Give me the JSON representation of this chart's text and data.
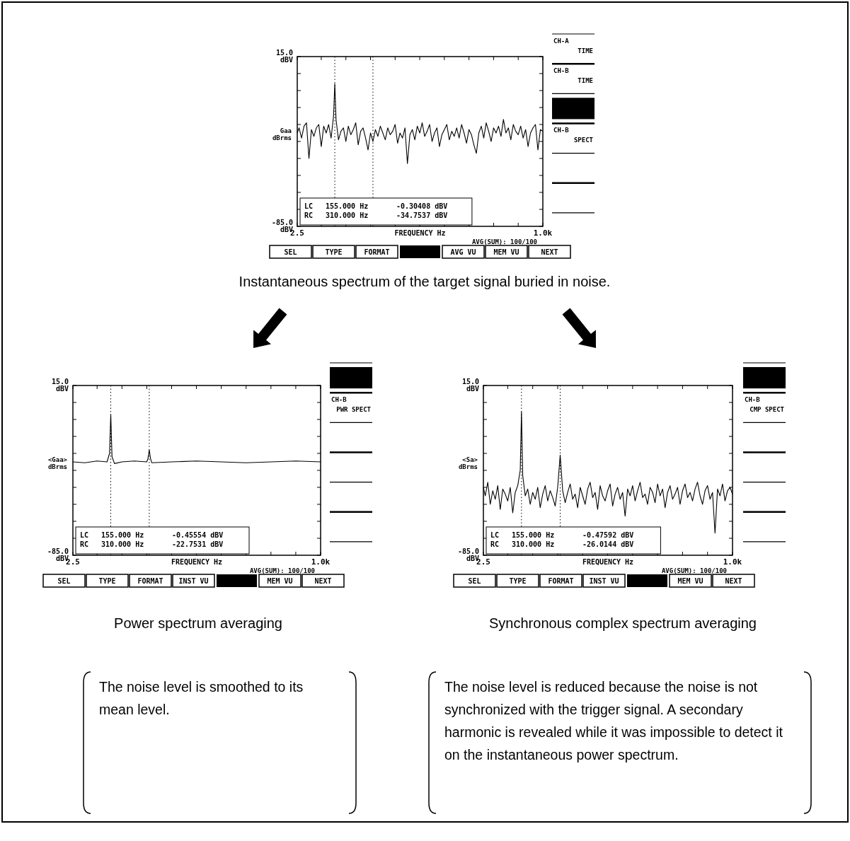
{
  "chart_data": [
    {
      "type": "line",
      "title": "Instantaneous spectrum of the target signal buried in noise.",
      "xlabel": "FREQUENCY Hz",
      "ylabel": "Gaa dBrms",
      "xlim": [
        2.5,
        1000
      ],
      "ylim": [
        -85,
        15
      ],
      "xticks": [
        {
          "value": 2.5,
          "label": "2.5"
        },
        {
          "value": 100,
          "label": null
        },
        {
          "value": 200,
          "label": null
        },
        {
          "value": 300,
          "label": null
        },
        {
          "value": 400,
          "label": null
        },
        {
          "value": 500,
          "label": null
        },
        {
          "value": 600,
          "label": null
        },
        {
          "value": 700,
          "label": null
        },
        {
          "value": 800,
          "label": null
        },
        {
          "value": 900,
          "label": null
        },
        {
          "value": 1000,
          "label": "1.0k"
        }
      ],
      "yticks": [
        {
          "value": 15,
          "label": "15.0 dBV"
        },
        {
          "value": 5,
          "label": null
        },
        {
          "value": -5,
          "label": null
        },
        {
          "value": -15,
          "label": null
        },
        {
          "value": -25,
          "label": null
        },
        {
          "value": -35,
          "label": null
        },
        {
          "value": -45,
          "label": null
        },
        {
          "value": -55,
          "label": null
        },
        {
          "value": -65,
          "label": null
        },
        {
          "value": -75,
          "label": null
        },
        {
          "value": -85,
          "label": "-85.0 dBV"
        }
      ],
      "x": [
        2.5,
        10,
        20,
        30,
        40,
        50,
        60,
        70,
        80,
        90,
        100,
        110,
        120,
        130,
        140,
        150,
        155,
        160,
        170,
        180,
        190,
        200,
        210,
        220,
        230,
        240,
        250,
        260,
        270,
        280,
        290,
        300,
        310,
        320,
        330,
        340,
        350,
        360,
        370,
        380,
        390,
        400,
        410,
        420,
        430,
        440,
        450,
        460,
        470,
        480,
        490,
        500,
        510,
        520,
        530,
        540,
        550,
        560,
        570,
        580,
        590,
        600,
        610,
        620,
        630,
        640,
        650,
        660,
        670,
        680,
        690,
        700,
        710,
        720,
        730,
        740,
        750,
        760,
        770,
        780,
        790,
        800,
        810,
        820,
        830,
        840,
        850,
        860,
        870,
        880,
        890,
        900,
        910,
        920,
        930,
        940,
        950,
        960,
        970,
        980,
        990,
        1000
      ],
      "series": [
        {
          "color": "#000000",
          "values": [
            -30,
            -27,
            -33,
            -26,
            -24,
            -45,
            -28,
            -32,
            -27,
            -25,
            -38,
            -26,
            -30,
            -25,
            -33,
            -20,
            -1,
            -22,
            -34,
            -29,
            -27,
            -35,
            -26,
            -31,
            -28,
            -24,
            -37,
            -29,
            -27,
            -33,
            -40,
            -30,
            -35,
            -28,
            -32,
            -26,
            -30,
            -34,
            -27,
            -31,
            -29,
            -25,
            -36,
            -30,
            -33,
            -27,
            -48,
            -31,
            -28,
            -34,
            -26,
            -30,
            -24,
            -32,
            -29,
            -25,
            -35,
            -30,
            -27,
            -38,
            -31,
            -28,
            -25,
            -34,
            -29,
            -32,
            -27,
            -33,
            -25,
            -30,
            -36,
            -28,
            -31,
            -37,
            -42,
            -30,
            -26,
            -33,
            -24,
            -29,
            -35,
            -27,
            -30,
            -26,
            -32,
            -22,
            -30,
            -27,
            -34,
            -25,
            -29,
            -31,
            -26,
            -33,
            -28,
            -38,
            -30,
            -27,
            -25,
            -40,
            -28,
            -29
          ]
        }
      ],
      "ref_lines": [
        {
          "axis": "x",
          "value": 155,
          "line_style": "dotted"
        },
        {
          "axis": "x",
          "value": 310,
          "line_style": "dotted"
        }
      ],
      "annotations": [
        "LC",
        "155.000 Hz",
        "-0.30408 dBV",
        "RC",
        "310.000 Hz",
        "-34.7537 dBV",
        "AVG(SUM): 100/100",
        "SEL",
        "TYPE",
        "FORMAT",
        "AVG VU",
        "MEM VU",
        "NEXT",
        "CH-A TIME",
        "CH-B TIME",
        "CH-B SPECT"
      ]
    },
    {
      "type": "line",
      "title": "Power spectrum averaging",
      "xlabel": "FREQUENCY Hz",
      "ylabel": "<Gaa> dBrms",
      "xlim": [
        2.5,
        1000
      ],
      "ylim": [
        -85,
        15
      ],
      "xticks": [
        {
          "value": 2.5,
          "label": "2.5"
        },
        {
          "value": 100,
          "label": null
        },
        {
          "value": 200,
          "label": null
        },
        {
          "value": 300,
          "label": null
        },
        {
          "value": 400,
          "label": null
        },
        {
          "value": 500,
          "label": null
        },
        {
          "value": 600,
          "label": null
        },
        {
          "value": 700,
          "label": null
        },
        {
          "value": 800,
          "label": null
        },
        {
          "value": 900,
          "label": null
        },
        {
          "value": 1000,
          "label": "1.0k"
        }
      ],
      "yticks": [
        {
          "value": 15,
          "label": "15.0 dBV"
        },
        {
          "value": 5,
          "label": null
        },
        {
          "value": -5,
          "label": null
        },
        {
          "value": -15,
          "label": null
        },
        {
          "value": -25,
          "label": null
        },
        {
          "value": -35,
          "label": null
        },
        {
          "value": -45,
          "label": null
        },
        {
          "value": -55,
          "label": null
        },
        {
          "value": -65,
          "label": null
        },
        {
          "value": -75,
          "label": null
        },
        {
          "value": -85,
          "label": "-85.0 dBV"
        }
      ],
      "x": [
        2.5,
        50,
        100,
        140,
        150,
        155,
        160,
        170,
        200,
        250,
        300,
        305,
        310,
        315,
        320,
        400,
        500,
        600,
        700,
        800,
        900,
        1000
      ],
      "series": [
        {
          "color": "#000000",
          "values": [
            -30,
            -30.5,
            -29.5,
            -30,
            -25,
            -2,
            -27,
            -31,
            -30,
            -29.5,
            -30,
            -28,
            -23,
            -28,
            -30.5,
            -30,
            -29.5,
            -30,
            -30.5,
            -30,
            -29.5,
            -30
          ]
        }
      ],
      "ref_lines": [
        {
          "axis": "x",
          "value": 155,
          "line_style": "dotted"
        },
        {
          "axis": "x",
          "value": 310,
          "line_style": "dotted"
        }
      ],
      "annotations": [
        "LC",
        "155.000 Hz",
        "-0.45554 dBV",
        "RC",
        "310.000 Hz",
        "-22.7531 dBV",
        "AVG(SUM): 100/100",
        "SEL",
        "TYPE",
        "FORMAT",
        "INST VU",
        "MEM VU",
        "NEXT",
        "CH-B PWR SPECT",
        "The noise level is smoothed to its mean level."
      ]
    },
    {
      "type": "line",
      "title": "Synchronous complex spectrum averaging",
      "xlabel": "FREQUENCY Hz",
      "ylabel": "<Sa> dBrms",
      "xlim": [
        2.5,
        1000
      ],
      "ylim": [
        -85,
        15
      ],
      "xticks": [
        {
          "value": 2.5,
          "label": "2.5"
        },
        {
          "value": 100,
          "label": null
        },
        {
          "value": 200,
          "label": null
        },
        {
          "value": 300,
          "label": null
        },
        {
          "value": 400,
          "label": null
        },
        {
          "value": 500,
          "label": null
        },
        {
          "value": 600,
          "label": null
        },
        {
          "value": 700,
          "label": null
        },
        {
          "value": 800,
          "label": null
        },
        {
          "value": 900,
          "label": null
        },
        {
          "value": 1000,
          "label": "1.0k"
        }
      ],
      "yticks": [
        {
          "value": 15,
          "label": "15.0 dBV"
        },
        {
          "value": 5,
          "label": null
        },
        {
          "value": -5,
          "label": null
        },
        {
          "value": -15,
          "label": null
        },
        {
          "value": -25,
          "label": null
        },
        {
          "value": -35,
          "label": null
        },
        {
          "value": -45,
          "label": null
        },
        {
          "value": -55,
          "label": null
        },
        {
          "value": -65,
          "label": null
        },
        {
          "value": -75,
          "label": null
        },
        {
          "value": -85,
          "label": "-85.0 dBV"
        }
      ],
      "x": [
        2.5,
        10,
        20,
        30,
        40,
        50,
        60,
        70,
        80,
        90,
        100,
        110,
        120,
        130,
        140,
        150,
        155,
        160,
        170,
        180,
        190,
        200,
        210,
        220,
        230,
        240,
        250,
        260,
        270,
        280,
        290,
        300,
        310,
        320,
        330,
        340,
        350,
        360,
        370,
        380,
        390,
        400,
        410,
        420,
        430,
        440,
        450,
        460,
        470,
        480,
        490,
        500,
        510,
        520,
        530,
        540,
        550,
        560,
        570,
        580,
        590,
        600,
        610,
        620,
        630,
        640,
        650,
        660,
        670,
        680,
        690,
        700,
        710,
        720,
        730,
        740,
        750,
        760,
        770,
        780,
        790,
        800,
        810,
        820,
        830,
        840,
        850,
        860,
        870,
        880,
        890,
        900,
        910,
        920,
        930,
        940,
        950,
        960,
        970,
        980,
        990,
        1000
      ],
      "series": [
        {
          "color": "#000000",
          "values": [
            -45,
            -50,
            -42,
            -55,
            -47,
            -52,
            -44,
            -58,
            -46,
            -49,
            -53,
            -45,
            -60,
            -48,
            -44,
            -35,
            -0.5,
            -38,
            -50,
            -46,
            -55,
            -48,
            -52,
            -45,
            -57,
            -49,
            -44,
            -53,
            -47,
            -51,
            -56,
            -45,
            -26,
            -47,
            -54,
            -48,
            -43,
            -52,
            -49,
            -57,
            -45,
            -50,
            -55,
            -46,
            -42,
            -51,
            -48,
            -58,
            -44,
            -50,
            -53,
            -47,
            -43,
            -56,
            -49,
            -45,
            -52,
            -48,
            -62,
            -46,
            -50,
            -44,
            -53,
            -47,
            -42,
            -51,
            -49,
            -55,
            -45,
            -48,
            -54,
            -43,
            -50,
            -46,
            -57,
            -48,
            -44,
            -52,
            -49,
            -45,
            -55,
            -47,
            -43,
            -51,
            -48,
            -53,
            -46,
            -42,
            -50,
            -55,
            -47,
            -44,
            -52,
            -48,
            -72,
            -46,
            -50,
            -43,
            -53,
            -47,
            -45,
            -49
          ]
        }
      ],
      "ref_lines": [
        {
          "axis": "x",
          "value": 155,
          "line_style": "dotted"
        },
        {
          "axis": "x",
          "value": 310,
          "line_style": "dotted"
        }
      ],
      "annotations": [
        "LC",
        "155.000 Hz",
        "-0.47592 dBV",
        "RC",
        "310.000 Hz",
        "-26.0144 dBV",
        "AVG(SUM): 100/100",
        "SEL",
        "TYPE",
        "FORMAT",
        "INST VU",
        "MEM VU",
        "NEXT",
        "CH-B CMP SPECT",
        "The noise level is reduced because the noise is not synchronized with the trigger signal. A secondary harmonic is revealed while it was impossible to detect it on the instantaneous power spectrum."
      ]
    }
  ]
}
